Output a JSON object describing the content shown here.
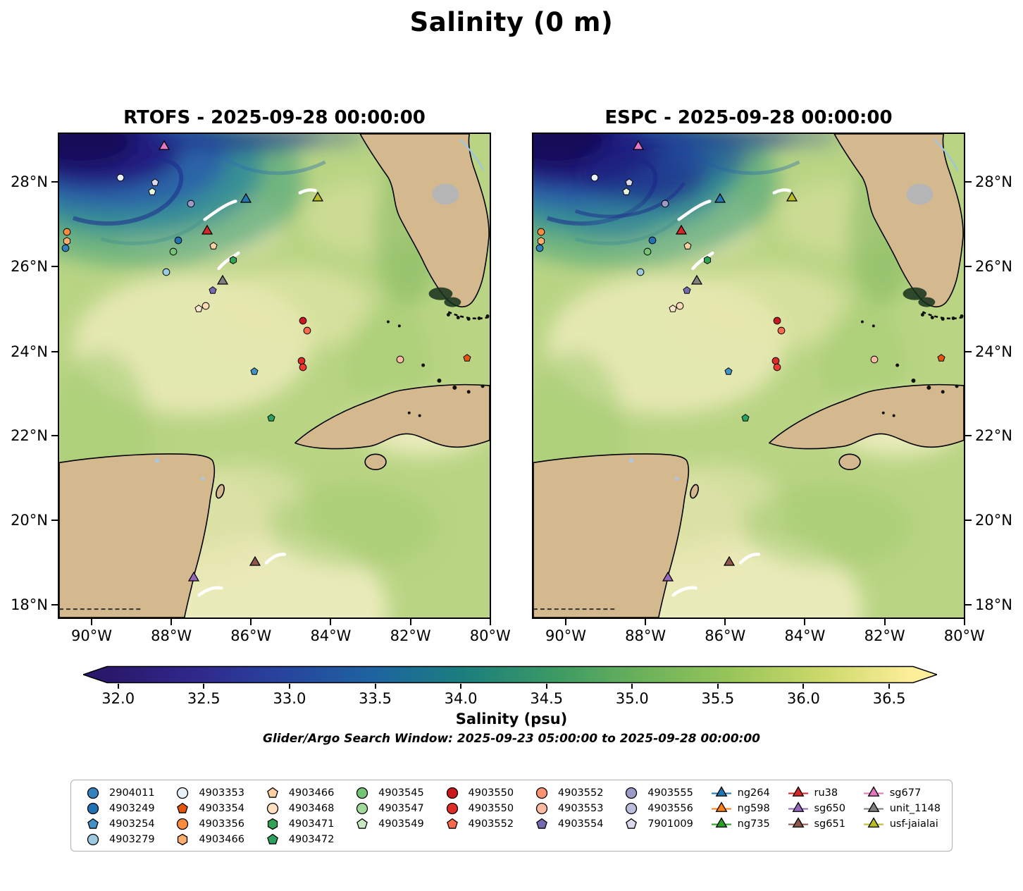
{
  "title": "Salinity (0 m)",
  "chart_data": {
    "type": "heatmap",
    "subtype": "two-panel geographic salinity model comparison with glider/argo scatter overlay",
    "region": "Gulf of Mexico / Florida / Cuba / Yucatan",
    "panels": [
      {
        "model": "RTOFS",
        "title": "RTOFS - 2025-09-28 00:00:00"
      },
      {
        "model": "ESPC",
        "title": "ESPC - 2025-09-28 00:00:00"
      }
    ],
    "x_ticks": [
      "90°W",
      "88°W",
      "86°W",
      "84°W",
      "82°W",
      "80°W"
    ],
    "y_ticks": [
      "28°N",
      "26°N",
      "24°N",
      "22°N",
      "20°N",
      "18°N"
    ],
    "x_range_deg_west": [
      90.85,
      80.0
    ],
    "y_range_deg_north": [
      17.7,
      29.2
    ],
    "colorbar": {
      "label": "Salinity (psu)",
      "ticks": [
        "32.0",
        "32.5",
        "33.0",
        "33.5",
        "34.0",
        "34.5",
        "35.0",
        "35.5",
        "36.0",
        "36.5"
      ],
      "stops": [
        "#29186b",
        "#30288c",
        "#27459e",
        "#1d64a0",
        "#1b7f7d",
        "#3b9a64",
        "#6cb25a",
        "#9ac659",
        "#cdd96b",
        "#fdef9a"
      ],
      "extend": "both"
    },
    "annotation": "Glider/Argo Search Window: 2025-09-23 05:00:00 to 2025-09-28 00:00:00",
    "markers": [
      {
        "id": "sg677",
        "shape": "triangle",
        "color": "#e377c2",
        "x": 24.4,
        "y": 2.6
      },
      {
        "id": "4903353",
        "shape": "circle",
        "color": "#e8f0f8",
        "x": 14.3,
        "y": 9.1
      },
      {
        "id": "7901009",
        "shape": "pentagon",
        "color": "#dadaeb",
        "x": 22.3,
        "y": 10.1
      },
      {
        "id": "4903549",
        "shape": "pentagon",
        "color": "#e5f5e0",
        "x": 21.6,
        "y": 11.9
      },
      {
        "id": "4903555",
        "shape": "circle",
        "color": "#9e9ac8",
        "x": 30.6,
        "y": 14.5
      },
      {
        "id": "ng264",
        "shape": "triangle",
        "color": "#1f77b4",
        "x": 43.4,
        "y": 13.5
      },
      {
        "id": "usf-jaialai",
        "shape": "triangle",
        "color": "#bcbd22",
        "x": 60.0,
        "y": 13.2
      },
      {
        "id": "4903356",
        "shape": "circle",
        "color": "#fd8d3c",
        "x": 1.8,
        "y": 20.3
      },
      {
        "id": "4903466",
        "shape": "hexagon",
        "color": "#fdae6b",
        "x": 1.8,
        "y": 22.1
      },
      {
        "id": "2904011",
        "shape": "circle",
        "color": "#3182bd",
        "x": 1.4,
        "y": 23.6
      },
      {
        "id": "ru38",
        "shape": "triangle",
        "color": "#d62728",
        "x": 34.3,
        "y": 20.1
      },
      {
        "id": "4903249",
        "shape": "circle",
        "color": "#2171b5",
        "x": 27.6,
        "y": 22.0
      },
      {
        "id": "4903466",
        "shape": "pentagon",
        "color": "#fdd0a2",
        "x": 35.9,
        "y": 23.2
      },
      {
        "id": "4903545",
        "shape": "circle",
        "color": "#74c476",
        "x": 26.5,
        "y": 24.3
      },
      {
        "id": "4903471",
        "shape": "hexagon",
        "color": "#31a354",
        "x": 40.5,
        "y": 26.1
      },
      {
        "id": "4903279",
        "shape": "circle",
        "color": "#9ecae1",
        "x": 24.9,
        "y": 28.6
      },
      {
        "id": "unit_1148",
        "shape": "triangle",
        "color": "#7f7f7f",
        "x": 37.9,
        "y": 30.4
      },
      {
        "id": "4903554",
        "shape": "pentagon",
        "color": "#756bb1",
        "x": 35.6,
        "y": 32.3
      },
      {
        "id": "4903468",
        "shape": "circle",
        "color": "#fdd9b4",
        "x": 34.1,
        "y": 35.5
      },
      {
        "id": "4903466",
        "shape": "pentagon",
        "color": "#fee6ce",
        "x": 32.4,
        "y": 36.1
      },
      {
        "id": "4903550",
        "shape": "circle",
        "color": "#cb181d",
        "x": 56.6,
        "y": 38.7
      },
      {
        "id": "4903552",
        "shape": "circle",
        "color": "#fb6a4a",
        "x": 57.6,
        "y": 40.7
      },
      {
        "id": "4903553",
        "shape": "circle",
        "color": "#fcbba1",
        "x": 79.2,
        "y": 46.7
      },
      {
        "id": "4903354",
        "shape": "pentagon",
        "color": "#e6550d",
        "x": 94.8,
        "y": 46.4
      },
      {
        "id": "4903550",
        "shape": "circle",
        "color": "#de2d26",
        "x": 56.3,
        "y": 47.0
      },
      {
        "id": "4903552",
        "shape": "circle",
        "color": "#ef3b2c",
        "x": 56.7,
        "y": 48.2
      },
      {
        "id": "4903254",
        "shape": "pentagon",
        "color": "#4292c6",
        "x": 45.4,
        "y": 49.1
      },
      {
        "id": "4903472",
        "shape": "pentagon",
        "color": "#2ca25f",
        "x": 49.3,
        "y": 58.7
      },
      {
        "id": "sg651",
        "shape": "triangle",
        "color": "#8c564b",
        "x": 45.5,
        "y": 88.7
      },
      {
        "id": "sg650",
        "shape": "triangle",
        "color": "#9467bd",
        "x": 31.2,
        "y": 91.9
      }
    ],
    "legend_columns": [
      [
        {
          "id": "2904011",
          "shape": "circle",
          "color": "#3182bd"
        },
        {
          "id": "4903249",
          "shape": "circle",
          "color": "#2171b5"
        },
        {
          "id": "4903254",
          "shape": "pentagon",
          "color": "#4292c6"
        },
        {
          "id": "4903279",
          "shape": "circle",
          "color": "#9ecae1"
        }
      ],
      [
        {
          "id": "4903353",
          "shape": "circle",
          "color": "#e8f0f8"
        },
        {
          "id": "4903354",
          "shape": "pentagon",
          "color": "#e6550d"
        },
        {
          "id": "4903356",
          "shape": "circle",
          "color": "#fd8d3c"
        },
        {
          "id": "4903466",
          "shape": "hexagon",
          "color": "#fdae6b"
        }
      ],
      [
        {
          "id": "4903466",
          "shape": "pentagon",
          "color": "#fdd0a2"
        },
        {
          "id": "4903468",
          "shape": "circle",
          "color": "#fee0c0"
        },
        {
          "id": "4903471",
          "shape": "hexagon",
          "color": "#31a354"
        },
        {
          "id": "4903472",
          "shape": "pentagon",
          "color": "#2ca25f"
        }
      ],
      [
        {
          "id": "4903545",
          "shape": "circle",
          "color": "#74c476"
        },
        {
          "id": "4903547",
          "shape": "circle",
          "color": "#a1d99b"
        },
        {
          "id": "4903549",
          "shape": "pentagon",
          "color": "#c7e9c0"
        }
      ],
      [
        {
          "id": "4903550",
          "shape": "circle",
          "color": "#cb181d"
        },
        {
          "id": "4903550",
          "shape": "circle",
          "color": "#de2d26"
        },
        {
          "id": "4903552",
          "shape": "pentagon",
          "color": "#fb6a4a"
        }
      ],
      [
        {
          "id": "4903552",
          "shape": "circle",
          "color": "#fc9272"
        },
        {
          "id": "4903553",
          "shape": "circle",
          "color": "#fcbba1"
        },
        {
          "id": "4903554",
          "shape": "pentagon",
          "color": "#756bb1"
        }
      ],
      [
        {
          "id": "4903555",
          "shape": "circle",
          "color": "#9e9ac8"
        },
        {
          "id": "4903556",
          "shape": "circle",
          "color": "#bcbddc"
        },
        {
          "id": "7901009",
          "shape": "pentagon",
          "color": "#dadaeb"
        }
      ],
      [
        {
          "id": "ng264",
          "shape": "triangle",
          "color": "#1f77b4"
        },
        {
          "id": "ng598",
          "shape": "triangle",
          "color": "#ff7f0e"
        },
        {
          "id": "ng735",
          "shape": "triangle",
          "color": "#2ca02c"
        }
      ],
      [
        {
          "id": "ru38",
          "shape": "triangle",
          "color": "#d62728"
        },
        {
          "id": "sg650",
          "shape": "triangle",
          "color": "#9467bd"
        },
        {
          "id": "sg651",
          "shape": "triangle",
          "color": "#8c564b"
        }
      ],
      [
        {
          "id": "sg677",
          "shape": "triangle",
          "color": "#e377c2"
        },
        {
          "id": "unit_1148",
          "shape": "triangle",
          "color": "#7f7f7f"
        },
        {
          "id": "usf-jaialai",
          "shape": "triangle",
          "color": "#bcbd22"
        }
      ]
    ]
  },
  "colors": {
    "land": "#d5b98e",
    "ocean_base": "#b9d584",
    "glider_track": "#ffffff",
    "low_salinity_plume": "#191056"
  }
}
